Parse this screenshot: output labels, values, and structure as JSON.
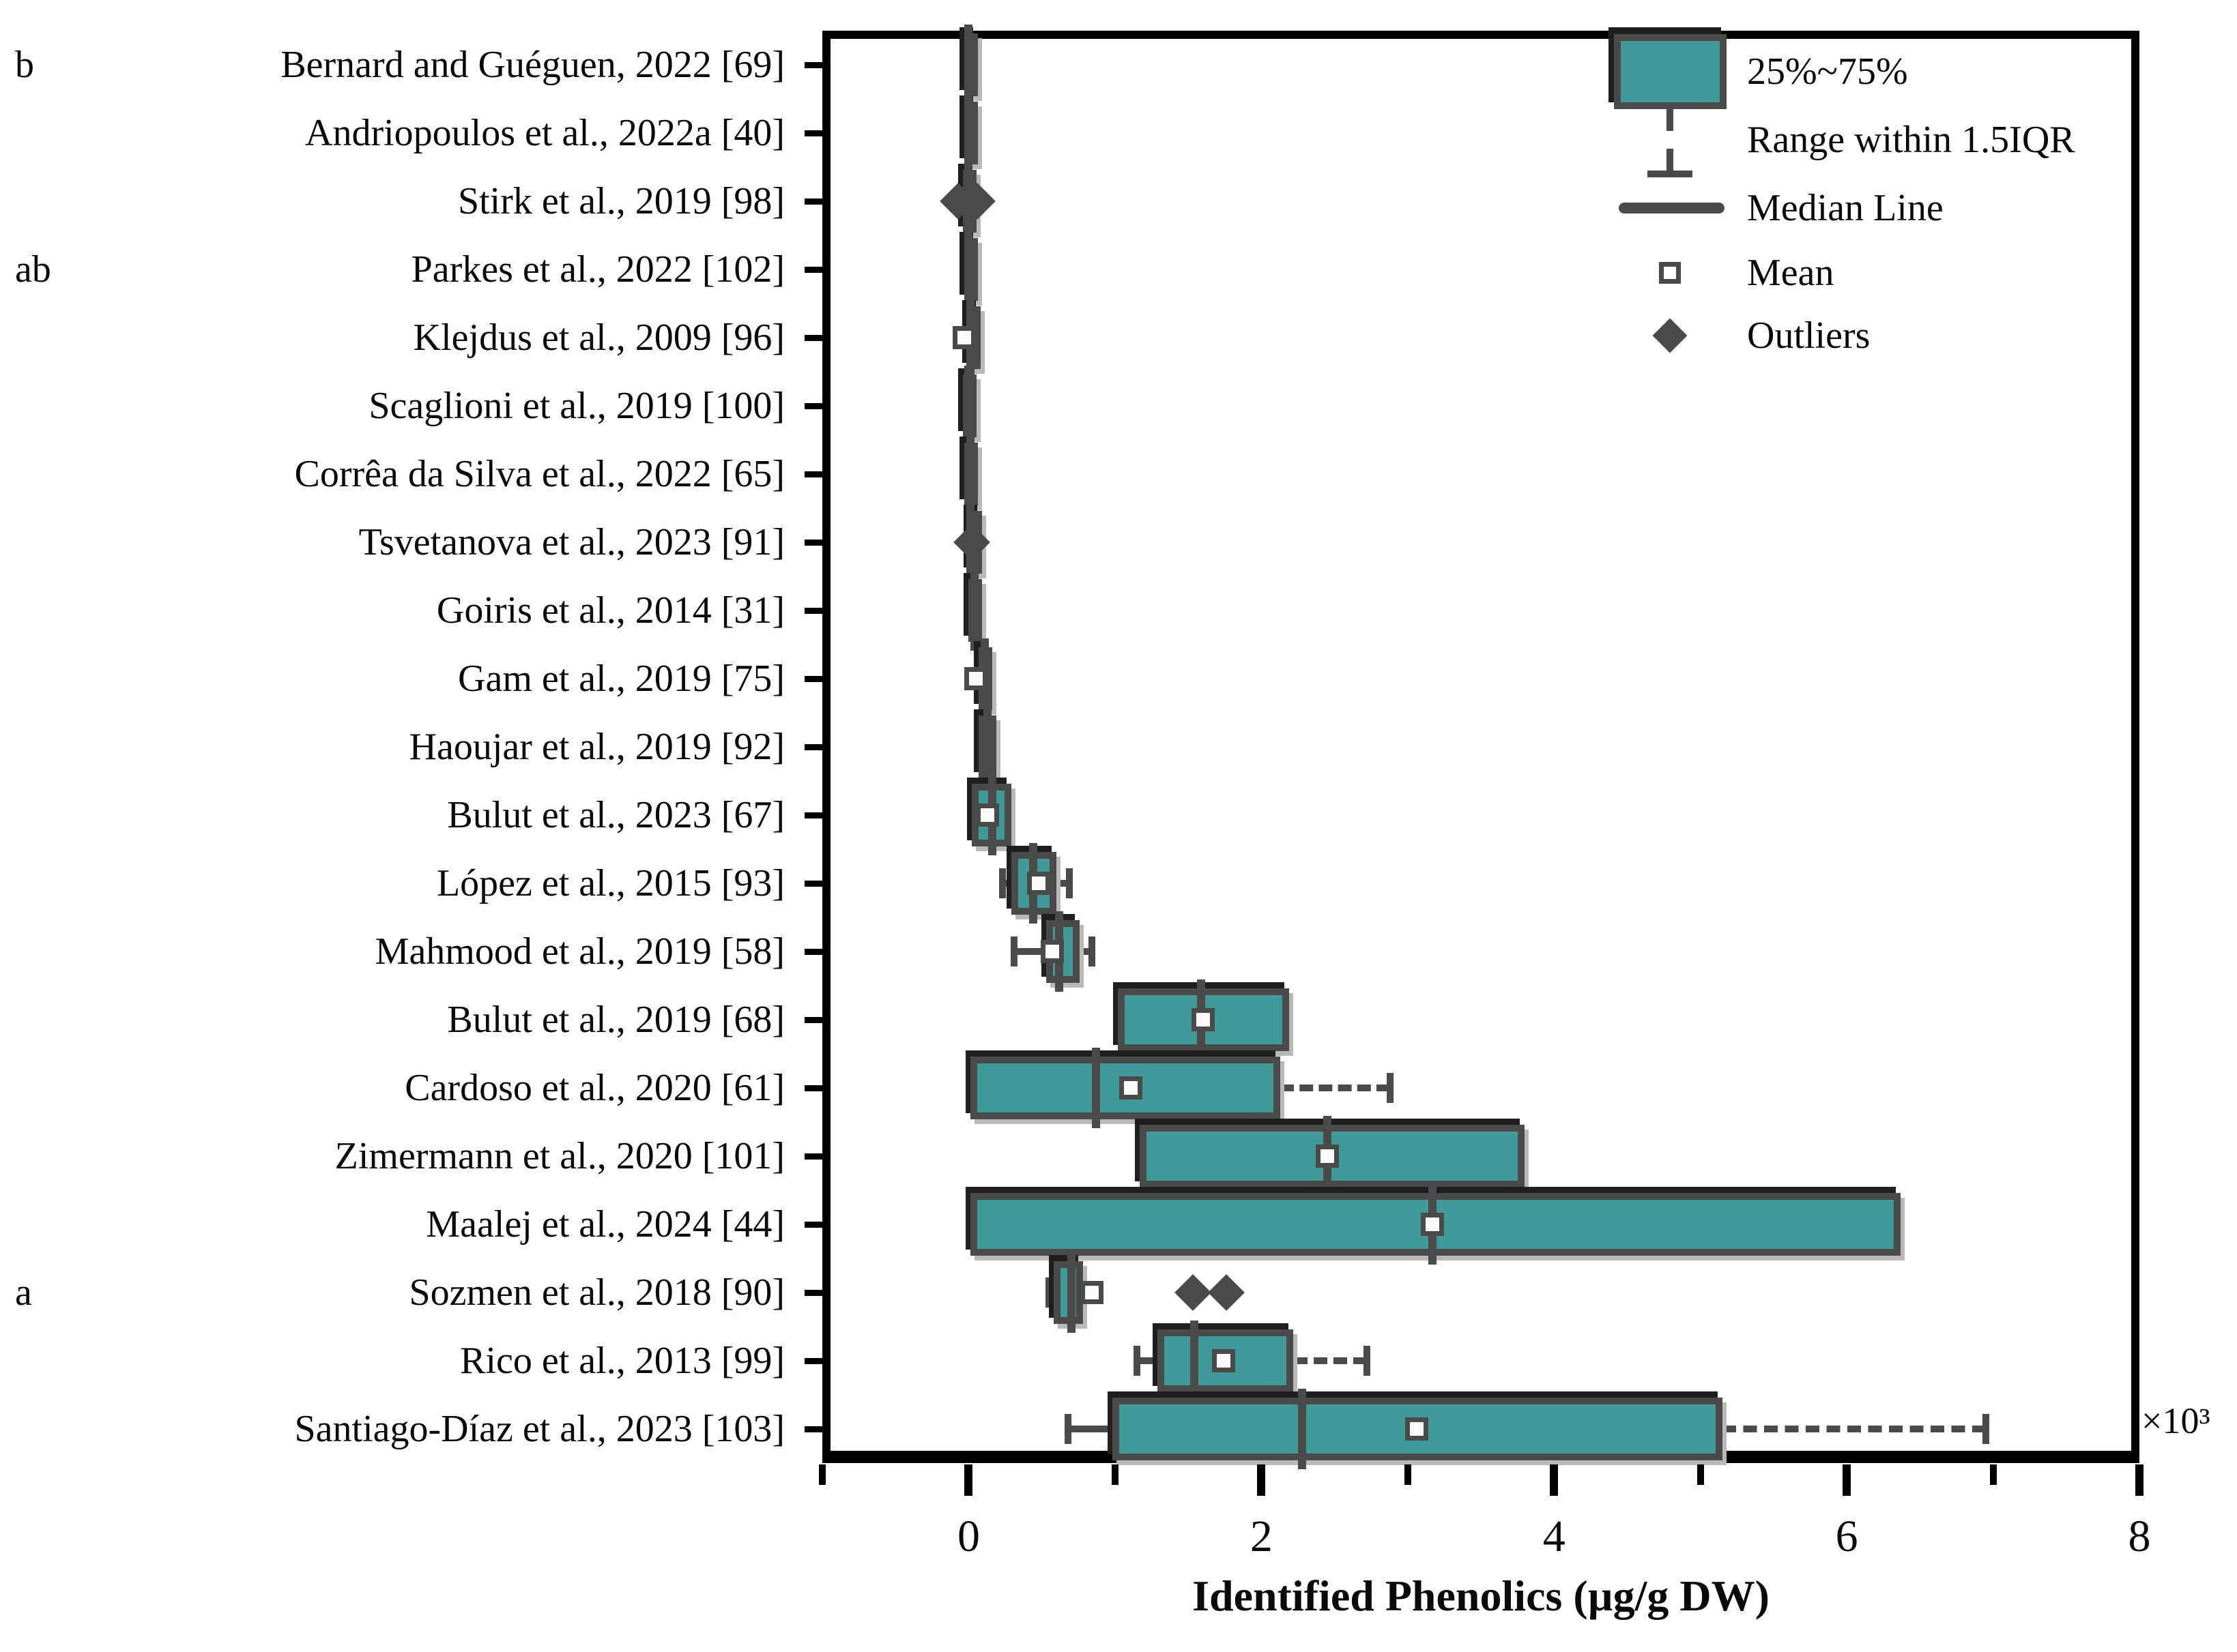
{
  "chart_data": {
    "type": "box",
    "orientation": "horizontal",
    "xlabel": "Identified Phenolics (µg/g DW)",
    "x_multiplier": "×10³",
    "value_unit": "10³ µg/g DW",
    "xlim": [
      -1,
      8
    ],
    "x_major_ticks": [
      0,
      2,
      4,
      6,
      8
    ],
    "x_minor_ticks": [
      -1,
      1,
      3,
      5,
      7
    ],
    "grid": false,
    "legend_position": "top-right-inside",
    "rows": [
      {
        "label": "Bernard and Guéguen, 2022 [69]",
        "group": "b",
        "q1": -0.03,
        "median": 0.0,
        "q3": 0.03,
        "mean": 0.0,
        "whisker_low": -0.04,
        "whisker_high": 0.04,
        "outliers": []
      },
      {
        "label": "Andriopoulos et al., 2022a [40]",
        "group": "",
        "q1": -0.03,
        "median": 0.0,
        "q3": 0.03,
        "mean": 0.0,
        "whisker_low": -0.04,
        "whisker_high": 0.04,
        "outliers": []
      },
      {
        "label": "Stirk et al., 2019 [98]",
        "group": "",
        "q1": -0.04,
        "median": 0.0,
        "q3": 0.04,
        "mean": 0.0,
        "whisker_low": -0.05,
        "whisker_high": 0.05,
        "outliers": [
          -0.07,
          0.06
        ]
      },
      {
        "label": "Parkes et al., 2022 [102]",
        "group": "ab",
        "q1": -0.03,
        "median": 0.0,
        "q3": 0.03,
        "mean": 0.0,
        "whisker_low": -0.04,
        "whisker_high": 0.04,
        "outliers": []
      },
      {
        "label": "Klejdus et al., 2009 [96]",
        "group": "",
        "q1": -0.01,
        "median": 0.01,
        "q3": 0.02,
        "mean": -0.03,
        "whisker_low": -0.02,
        "whisker_high": 0.03,
        "outliers": []
      },
      {
        "label": "Scaglioni et al., 2019 [100]",
        "group": "",
        "q1": -0.04,
        "median": 0.0,
        "q3": 0.03,
        "mean": 0.0,
        "whisker_low": -0.05,
        "whisker_high": 0.04,
        "outliers": []
      },
      {
        "label": "Corrêa da Silva et al., 2022 [65]",
        "group": "",
        "q1": -0.03,
        "median": 0.01,
        "q3": 0.05,
        "mean": 0.01,
        "whisker_low": -0.04,
        "whisker_high": 0.06,
        "outliers": []
      },
      {
        "label": "Tsvetanova et al., 2023 [91]",
        "group": "",
        "q1": 0.0,
        "median": 0.01,
        "q3": 0.03,
        "mean": 0.01,
        "whisker_low": -0.01,
        "whisker_high": 0.04,
        "outliers": [
          0.02
        ]
      },
      {
        "label": "Goiris et al., 2014 [31]",
        "group": "",
        "q1": 0.0,
        "median": 0.04,
        "q3": 0.08,
        "mean": 0.04,
        "whisker_low": -0.01,
        "whisker_high": 0.09,
        "outliers": []
      },
      {
        "label": "Gam et al., 2019 [75]",
        "group": "",
        "q1": 0.07,
        "median": 0.11,
        "q3": 0.15,
        "mean": 0.05,
        "whisker_low": 0.06,
        "whisker_high": 0.16,
        "outliers": []
      },
      {
        "label": "Haoujar et al., 2019 [92]",
        "group": "",
        "q1": 0.07,
        "median": 0.13,
        "q3": 0.19,
        "mean": 0.13,
        "whisker_low": 0.06,
        "whisker_high": 0.2,
        "outliers": []
      },
      {
        "label": "Bulut et al., 2023 [67]",
        "group": "",
        "q1": 0.02,
        "median": 0.16,
        "q3": 0.29,
        "mean": 0.13,
        "whisker_low": 0.0,
        "whisker_high": 0.3,
        "outliers": []
      },
      {
        "label": "López et al., 2015 [93]",
        "group": "",
        "q1": 0.29,
        "median": 0.44,
        "q3": 0.6,
        "mean": 0.48,
        "whisker_low": 0.23,
        "whisker_high": 0.69,
        "outliers": []
      },
      {
        "label": "Mahmood et al., 2019 [58]",
        "group": "",
        "q1": 0.53,
        "median": 0.62,
        "q3": 0.76,
        "mean": 0.57,
        "whisker_low": 0.31,
        "whisker_high": 0.84,
        "outliers": []
      },
      {
        "label": "Bulut et al., 2019 [68]",
        "group": "",
        "q1": 1.02,
        "median": 1.59,
        "q3": 2.19,
        "mean": 1.6,
        "whisker_low": 1.02,
        "whisker_high": 2.19,
        "outliers": []
      },
      {
        "label": "Cardoso et al., 2020 [61]",
        "group": "",
        "q1": 0.01,
        "median": 0.87,
        "q3": 2.13,
        "mean": 1.11,
        "whisker_low": 0.01,
        "whisker_high": 2.88,
        "dashed_high": true,
        "outliers": []
      },
      {
        "label": "Zimermann et al., 2020 [101]",
        "group": "",
        "q1": 1.17,
        "median": 2.45,
        "q3": 3.8,
        "mean": 2.45,
        "whisker_low": 1.17,
        "whisker_high": 3.8,
        "outliers": []
      },
      {
        "label": "Maalej et al., 2024 [44]",
        "group": "",
        "q1": 0.01,
        "median": 3.17,
        "q3": 6.37,
        "mean": 3.17,
        "whisker_low": 0.01,
        "whisker_high": 6.37,
        "outliers": []
      },
      {
        "label": "Sozmen et al., 2018 [90]",
        "group": "a",
        "q1": 0.58,
        "median": 0.7,
        "q3": 0.78,
        "mean": 0.84,
        "whisker_low": 0.55,
        "whisker_high": 0.78,
        "outliers": [
          1.53,
          1.76
        ]
      },
      {
        "label": "Rico et al., 2013 [99]",
        "group": "",
        "q1": 1.29,
        "median": 1.54,
        "q3": 2.22,
        "mean": 1.74,
        "whisker_low": 1.15,
        "whisker_high": 2.72,
        "dashed_high": true,
        "outliers": []
      },
      {
        "label": "Santiago-Díaz et al., 2023 [103]",
        "group": "",
        "q1": 0.98,
        "median": 2.28,
        "q3": 5.15,
        "mean": 3.06,
        "whisker_low": 0.68,
        "whisker_high": 6.95,
        "dashed_high": true,
        "outliers": []
      }
    ]
  },
  "legend": {
    "items": [
      {
        "marker": "box-swatch",
        "label": "25%~75%"
      },
      {
        "marker": "whisker-icon",
        "label": "Range within 1.5IQR"
      },
      {
        "marker": "median-line",
        "label": "Median Line"
      },
      {
        "marker": "mean-square",
        "label": "Mean"
      },
      {
        "marker": "outlier-diamond",
        "label": "Outliers"
      }
    ]
  },
  "colors": {
    "box_fill": "#3F9A98",
    "box_border": "#4A4A4A",
    "axis": "#000000",
    "text": "#0a0a0a"
  }
}
